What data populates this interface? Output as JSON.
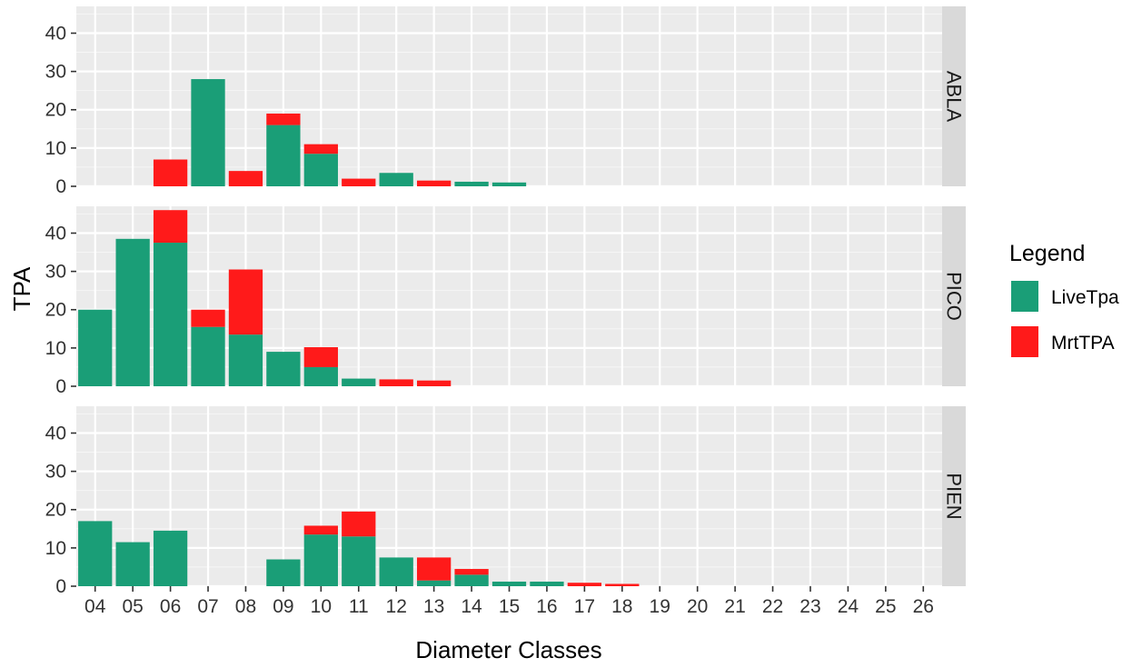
{
  "chart_data": {
    "type": "bar",
    "stacked": true,
    "xlabel": "Diameter Classes",
    "ylabel": "TPA",
    "ylim": [
      0,
      47
    ],
    "y_ticks": [
      0,
      10,
      20,
      30,
      40
    ],
    "grid": true,
    "legend_position": "right",
    "categories": [
      "04",
      "05",
      "06",
      "07",
      "08",
      "09",
      "10",
      "11",
      "12",
      "13",
      "14",
      "15",
      "16",
      "17",
      "18",
      "19",
      "20",
      "21",
      "22",
      "23",
      "24",
      "25",
      "26"
    ],
    "legend": {
      "title": "Legend",
      "items": [
        {
          "label": "LiveTpa",
          "color": "#1a9e77"
        },
        {
          "label": "MrtTPA",
          "color": "#ff1a1a"
        }
      ]
    },
    "panels": [
      {
        "label": "ABLA",
        "series": [
          {
            "name": "LiveTpa",
            "color": "#1a9e77",
            "values": [
              0,
              0,
              0,
              28,
              0,
              16,
              8.5,
              0,
              3.5,
              0,
              1.2,
              1.0,
              0,
              0,
              0,
              0,
              0,
              0,
              0,
              0,
              0,
              0,
              0
            ]
          },
          {
            "name": "MrtTPA",
            "color": "#ff1a1a",
            "values": [
              0,
              0,
              7,
              0,
              4,
              3,
              2.5,
              2,
              0,
              1.5,
              0,
              0,
              0,
              0,
              0,
              0,
              0,
              0,
              0,
              0,
              0,
              0,
              0
            ]
          }
        ]
      },
      {
        "label": "PICO",
        "series": [
          {
            "name": "LiveTpa",
            "color": "#1a9e77",
            "values": [
              20,
              38.5,
              37.5,
              15.5,
              13.5,
              9,
              5,
              2,
              0,
              0,
              0,
              0,
              0,
              0,
              0,
              0,
              0,
              0,
              0,
              0,
              0,
              0,
              0
            ]
          },
          {
            "name": "MrtTPA",
            "color": "#ff1a1a",
            "values": [
              0,
              0,
              8.5,
              4.5,
              17,
              0,
              5.2,
              0,
              1.8,
              1.5,
              0,
              0,
              0,
              0,
              0,
              0,
              0,
              0,
              0,
              0,
              0,
              0,
              0
            ]
          }
        ]
      },
      {
        "label": "PIEN",
        "series": [
          {
            "name": "LiveTpa",
            "color": "#1a9e77",
            "values": [
              17,
              11.5,
              14.5,
              0,
              0,
              7,
              13.5,
              13,
              7.5,
              1.5,
              3,
              1.2,
              1.2,
              0,
              0,
              0,
              0,
              0,
              0,
              0,
              0,
              0,
              0
            ]
          },
          {
            "name": "MrtTPA",
            "color": "#ff1a1a",
            "values": [
              0,
              0,
              0,
              0,
              0,
              0,
              2.3,
              6.5,
              0,
              6,
              1.5,
              0,
              0,
              0.9,
              0.6,
              0,
              0,
              0,
              0,
              0,
              0,
              0,
              0
            ]
          }
        ]
      }
    ]
  }
}
